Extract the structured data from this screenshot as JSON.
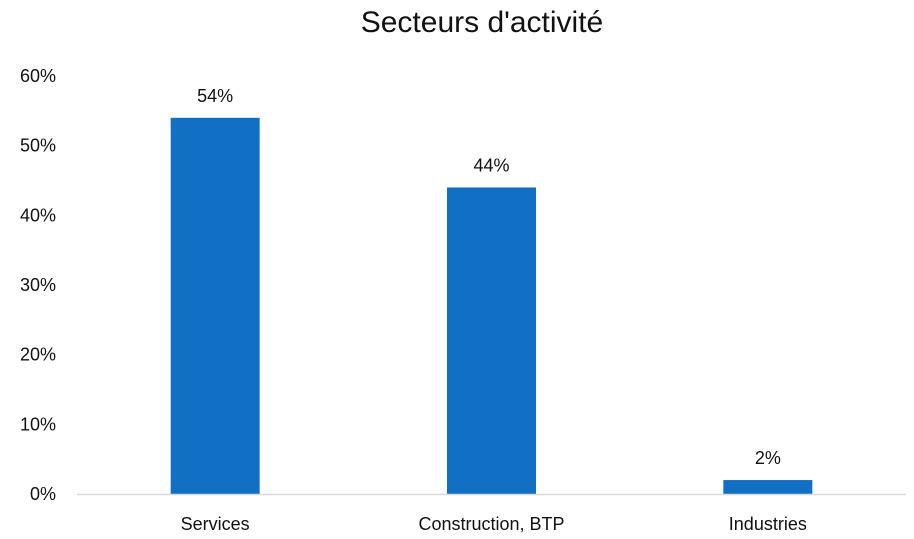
{
  "chart_data": {
    "type": "bar",
    "title": "Secteurs d'activité",
    "xlabel": "",
    "ylabel": "",
    "categories": [
      "Services",
      "Construction, BTP",
      "Industries"
    ],
    "values": [
      54,
      44,
      2
    ],
    "data_labels": [
      "54%",
      "44%",
      "2%"
    ],
    "ylim": [
      0,
      60
    ],
    "yticks": [
      0,
      10,
      20,
      30,
      40,
      50,
      60
    ],
    "ytick_labels": [
      "0%",
      "10%",
      "20%",
      "30%",
      "40%",
      "50%",
      "60%"
    ],
    "grid": false,
    "legend": "none",
    "bar_color": "#1170C4",
    "axis_color": "#D9D9D9"
  }
}
